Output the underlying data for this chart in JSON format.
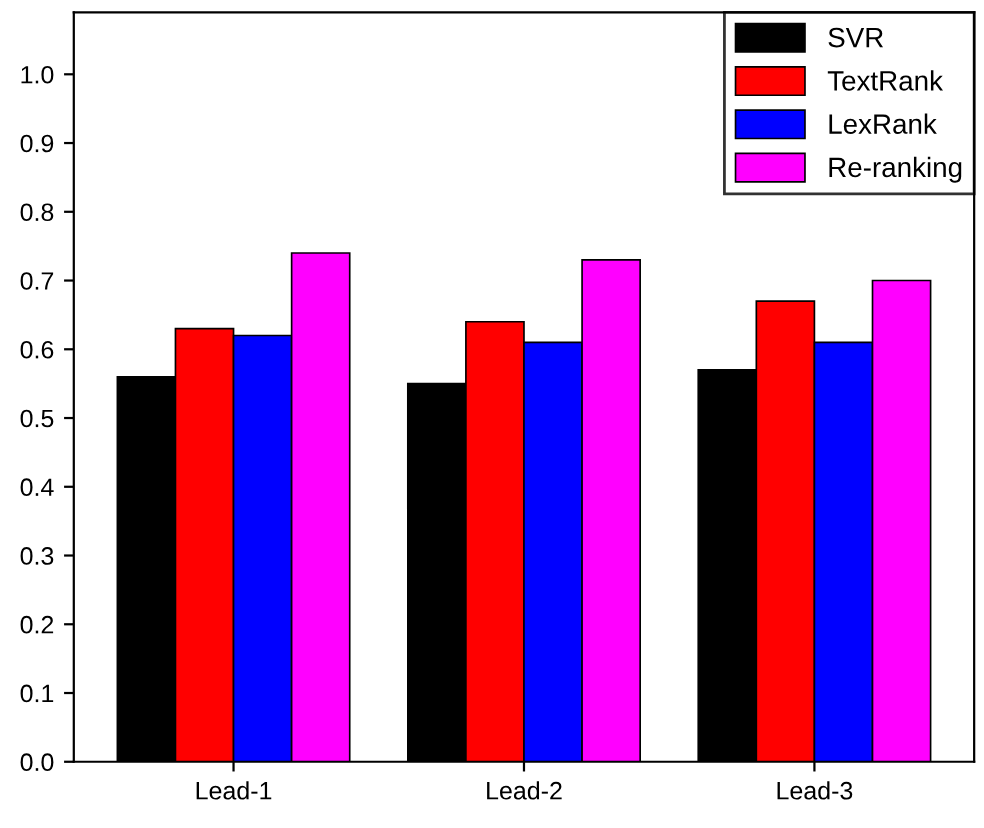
{
  "chart_data": {
    "type": "bar",
    "categories": [
      "Lead-1",
      "Lead-2",
      "Lead-3"
    ],
    "series": [
      {
        "name": "SVR",
        "color": "#000000",
        "values": [
          0.56,
          0.55,
          0.57
        ]
      },
      {
        "name": "TextRank",
        "color": "#ff0000",
        "values": [
          0.63,
          0.64,
          0.67
        ]
      },
      {
        "name": "LexRank",
        "color": "#0000ff",
        "values": [
          0.62,
          0.61,
          0.61
        ]
      },
      {
        "name": "Re-ranking",
        "color": "#ff00ff",
        "values": [
          0.74,
          0.73,
          0.7
        ]
      }
    ],
    "ylim": [
      0,
      1.09
    ],
    "yticks": [
      {
        "value": 0,
        "label": "0.0"
      },
      0.1,
      0.2,
      0.3,
      0.4,
      0.5,
      0.6,
      0.7,
      0.8,
      0.9,
      {
        "value": 1,
        "label": "1.0"
      }
    ],
    "grid": false,
    "legend": "top right"
  }
}
